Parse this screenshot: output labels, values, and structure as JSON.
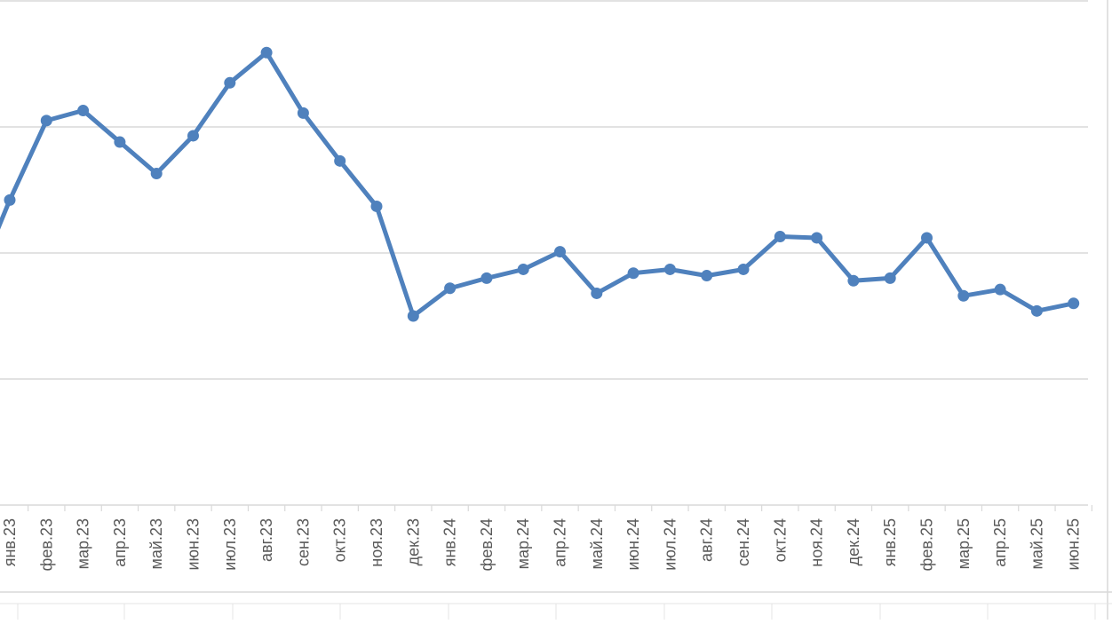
{
  "chart_data": {
    "type": "line",
    "title": "",
    "xlabel": "",
    "ylabel": "",
    "categories": [
      "янв.23",
      "фев.23",
      "мар.23",
      "апр.23",
      "май.23",
      "июн.23",
      "июл.23",
      "авг.23",
      "сен.23",
      "окт.23",
      "ноя.23",
      "дек.23",
      "янв.24",
      "фев.24",
      "мар.24",
      "апр.24",
      "май.24",
      "июн.24",
      "июл.24",
      "авг.24",
      "сен.24",
      "окт.24",
      "ноя.24",
      "дек.24",
      "янв.25",
      "фев.25",
      "мар.25",
      "апр.25",
      "май.25",
      "июн.25"
    ],
    "series": [
      {
        "color": "#4f81bd",
        "values": [
          2.42,
          3.05,
          3.13,
          2.88,
          2.63,
          2.93,
          3.35,
          3.59,
          3.11,
          2.73,
          2.37,
          1.5,
          1.72,
          1.8,
          1.87,
          2.01,
          1.68,
          1.84,
          1.87,
          1.82,
          1.87,
          2.13,
          2.12,
          1.78,
          1.8,
          2.12,
          1.66,
          1.71,
          1.54,
          1.6
        ]
      }
    ],
    "ylim": [
      0,
      4
    ],
    "grid": true,
    "gridline_color": "#d9d9d9",
    "legend": "none"
  }
}
